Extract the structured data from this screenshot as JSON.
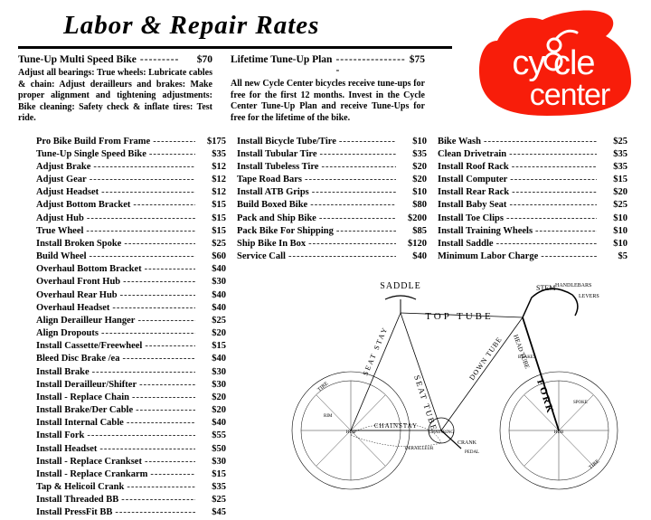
{
  "title": "Labor & Repair  Rates",
  "logo": {
    "text_top": "cy cle",
    "text_bottom": "center",
    "bg": "#f81d0a",
    "fg": "#ffffff"
  },
  "intro": {
    "left": {
      "label": "Tune-Up Multi Speed Bike",
      "price": "$70",
      "body": "Adjust all bearings: True wheels: Lubricate cables & chain: Adjust derailleurs and brakes: Make proper alignment and tightening adjustments: Bike cleaning: Safety check & inflate tires: Test ride."
    },
    "right": {
      "label": "Lifetime Tune-Up Plan",
      "price": "$75",
      "body": "All new Cycle Center bicycles receive tune-ups for free for the first 12 months. Invest in the Cycle Center Tune-Up Plan and receive Tune-Ups for free for the lifetime of the bike."
    }
  },
  "columns": [
    [
      {
        "name": "Pro Bike Build From Frame",
        "price": "$175"
      },
      {
        "name": "Tune-Up Single Speed Bike",
        "price": "$35"
      },
      {
        "name": "Adjust Brake",
        "price": "$12"
      },
      {
        "name": "Adjust Gear",
        "price": "$12"
      },
      {
        "name": "Adjust Headset",
        "price": "$12"
      },
      {
        "name": "Adjust Bottom Bracket",
        "price": "$15"
      },
      {
        "name": "Adjust Hub",
        "price": "$15"
      },
      {
        "name": "True Wheel",
        "price": "$15"
      },
      {
        "name": "Install Broken Spoke",
        "price": "$25"
      },
      {
        "name": "Build Wheel",
        "price": "$60"
      },
      {
        "name": "Overhaul Bottom Bracket",
        "price": "$40"
      },
      {
        "name": "Overhaul Front Hub",
        "price": "$30"
      },
      {
        "name": "Overhaul Rear Hub",
        "price": "$40"
      },
      {
        "name": "Overhaul Headset",
        "price": "$40"
      },
      {
        "name": "Align Derailleur Hanger",
        "price": "$25"
      },
      {
        "name": "Align Dropouts",
        "price": "$20"
      },
      {
        "name": "Install Cassette/Freewheel",
        "price": "$15"
      },
      {
        "name": "Bleed Disc Brake /ea",
        "price": "$40"
      },
      {
        "name": "Install Brake",
        "price": "$30"
      },
      {
        "name": "Install Derailleur/Shifter",
        "price": "$30"
      },
      {
        "name": "Install - Replace Chain",
        "price": "$20"
      },
      {
        "name": "Install Brake/Der Cable",
        "price": "$20"
      },
      {
        "name": "Install Internal Cable",
        "price": "$40"
      },
      {
        "name": "Install Fork",
        "price": "$55"
      },
      {
        "name": "Install Headset",
        "price": "$50"
      },
      {
        "name": "Install - Replace Crankset",
        "price": "$30"
      },
      {
        "name": "Install - Replace Crankarm",
        "price": "$15"
      },
      {
        "name": "Tap & Helicoil Crank",
        "price": "$35"
      },
      {
        "name": "Install Threaded BB",
        "price": "$25"
      },
      {
        "name": "Install PressFit BB",
        "price": "$45"
      }
    ],
    [
      {
        "name": "Install Bicycle Tube/Tire",
        "price": "$10"
      },
      {
        "name": "Install Tubular Tire",
        "price": "$35"
      },
      {
        "name": "Install Tubeless Tire",
        "price": "$20"
      },
      {
        "name": "Tape Road Bars",
        "price": "$20"
      },
      {
        "name": "Install ATB Grips",
        "price": "$10"
      },
      {
        "name": "Build Boxed Bike",
        "price": "$80"
      },
      {
        "name": "Pack and Ship Bike",
        "price": "$200"
      },
      {
        "name": "Pack Bike For Shipping",
        "price": "$85"
      },
      {
        "name": "Ship Bike In Box",
        "price": "$120"
      },
      {
        "name": "Service Call",
        "price": "$40"
      }
    ],
    [
      {
        "name": "Bike Wash",
        "price": "$25"
      },
      {
        "name": "Clean Drivetrain",
        "price": "$35"
      },
      {
        "name": "Install Roof Rack",
        "price": "$35"
      },
      {
        "name": "Install Computer",
        "price": "$15"
      },
      {
        "name": "Install Rear Rack",
        "price": "$20"
      },
      {
        "name": "Install Baby Seat",
        "price": "$25"
      },
      {
        "name": "Install Toe Clips",
        "price": "$10"
      },
      {
        "name": "Install Training Wheels",
        "price": "$10"
      },
      {
        "name": "Install Saddle",
        "price": "$10"
      },
      {
        "name": "Minimum Labor Charge",
        "price": "$5"
      }
    ]
  ],
  "bike_labels": {
    "saddle": "SADDLE",
    "stem": "STEM",
    "handlebars": "HANDLEBARS",
    "levers": "LEVERS",
    "toptube": "TOP TUBE",
    "headtube": "HEAD TUBE",
    "seattube": "SEAT TUBE",
    "seatstay": "SEAT STAY",
    "downtube": "DOWN TUBE",
    "fork": "FORK",
    "chainstay": "CHAINSTAY",
    "chainring": "CHAINRING",
    "crank": "CRANK",
    "pedal": "PEDAL",
    "derailleur": "DERAILLEUR",
    "brakes": "BRAKES",
    "chain": "CHAIN",
    "cables": "CABLES",
    "tire": "TIRE",
    "rim": "RIM",
    "spoke": "SPOKE",
    "hub": "HUB"
  }
}
